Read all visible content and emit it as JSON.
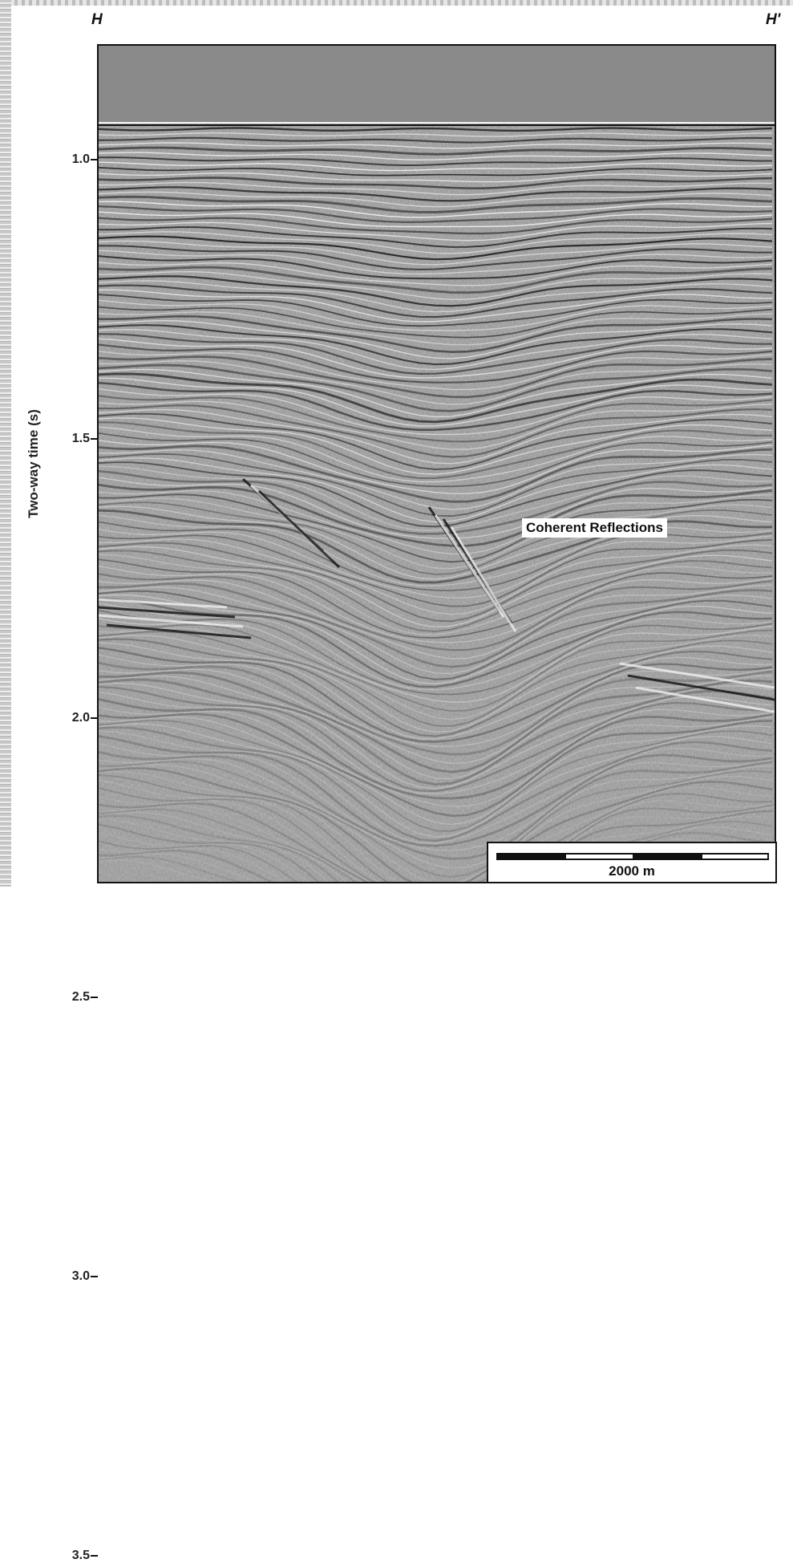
{
  "section": {
    "start_label": "H",
    "end_label": "H'",
    "y_axis_label": "Two-way time (s)",
    "y_axis_range": [
      0.65,
      3.55
    ],
    "y_ticks": [
      "1.0",
      "1.5",
      "2.0",
      "2.5",
      "3.0",
      "3.5"
    ],
    "annotation": "Coherent Reflections",
    "scale_bar_label": "2000 m"
  },
  "colors": {
    "water_column": "#8a8a8a",
    "frame": "#111111",
    "label_background": "#ffffff"
  }
}
